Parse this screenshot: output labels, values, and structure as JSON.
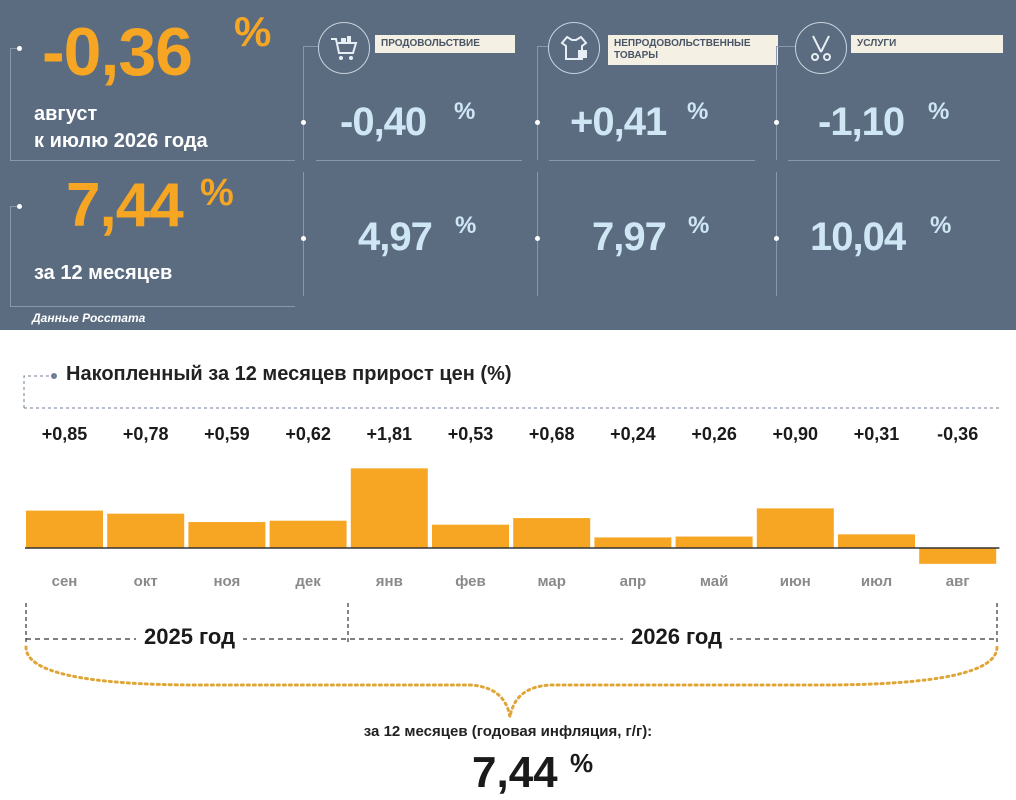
{
  "header": {
    "monthly": {
      "value": "-0,36",
      "unit": "%",
      "label_line1": "август",
      "label_line2": "к июлю 2026 года"
    },
    "annual": {
      "value": "7,44",
      "unit": "%",
      "label": "за 12 месяцев"
    },
    "source": "Данные Росстата",
    "categories": [
      {
        "icon": "shopping-cart-icon",
        "label": "ПРОДОВОЛЬСТВИЕ",
        "monthly": "-0,40",
        "annual": "4,97",
        "unit": "%"
      },
      {
        "icon": "clothing-icon",
        "label": "НЕПРОДОВОЛЬСТВЕННЫЕ ТОВАРЫ",
        "monthly": "+0,41",
        "annual": "7,97",
        "unit": "%"
      },
      {
        "icon": "scissors-tools-icon",
        "label": "УСЛУГИ",
        "monthly": "-1,10",
        "annual": "10,04",
        "unit": "%"
      }
    ],
    "colors": {
      "panel": "#5b6c81",
      "accent": "#f6a623",
      "value_text": "#cfe7f5"
    }
  },
  "chart_data": {
    "type": "bar",
    "title": "Накопленный за 12 месяцев прирост цен (%)",
    "categories": [
      "сен",
      "окт",
      "ноя",
      "дек",
      "янв",
      "фев",
      "мар",
      "апр",
      "май",
      "июн",
      "июл",
      "авг"
    ],
    "values": [
      0.85,
      0.78,
      0.59,
      0.62,
      1.81,
      0.53,
      0.68,
      0.24,
      0.26,
      0.9,
      0.31,
      -0.36
    ],
    "data_labels": [
      "+0,85",
      "+0,78",
      "+0,59",
      "+0,62",
      "+1,81",
      "+0,53",
      "+0,68",
      "+0,24",
      "+0,26",
      "+0,90",
      "+0,31",
      "-0,36"
    ],
    "bar_color": "#f6a623",
    "year_groups": [
      {
        "label": "2025 год",
        "months": [
          "сен",
          "окт",
          "ноя",
          "дек"
        ]
      },
      {
        "label": "2026 год",
        "months": [
          "янв",
          "фев",
          "мар",
          "апр",
          "май",
          "июн",
          "июл",
          "авг"
        ]
      }
    ]
  },
  "footer": {
    "label": "за 12 месяцев (годовая инфляция, г/г):",
    "value": "7,44",
    "unit": "%"
  }
}
